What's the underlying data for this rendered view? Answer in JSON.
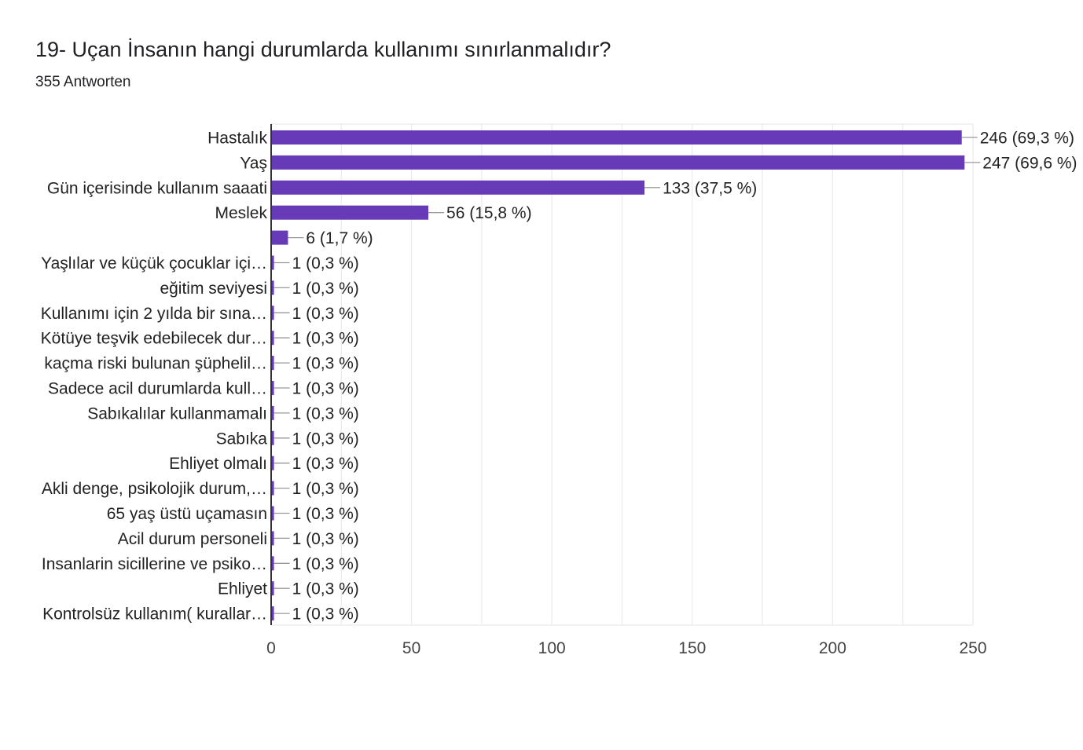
{
  "header": {
    "title": "19- Uçan İnsanın hangi durumlarda kullanımı sınırlanmalıdır?",
    "response_count": "355 Antworten"
  },
  "colors": {
    "bar": "#673ab7",
    "grid": "#ebebeb",
    "axis": "#333333",
    "leader": "#999999"
  },
  "chart_data": {
    "type": "bar",
    "orientation": "horizontal",
    "title": "19- Uçan İnsanın hangi durumlarda kullanımı sınırlanmalıdır?",
    "xlabel": "",
    "ylabel": "",
    "xlim": [
      0,
      250
    ],
    "x_ticks": [
      0,
      50,
      100,
      150,
      200,
      250
    ],
    "grid": true,
    "legend": "none",
    "categories": [
      "Hastalık",
      "Yaş",
      "Gün içerisinde kullanım saaati",
      "Meslek",
      "",
      "Yaşlılar ve küçük çocuklar içi…",
      "eğitim seviyesi",
      "Kullanımı için 2 yılda bir sına…",
      "Kötüye teşvik edebilecek dur…",
      "kaçma riski bulunan şüphelil…",
      "Sadece acil durumlarda kull…",
      "Sabıkalılar kullanmamalı",
      "Sabıka",
      "Ehliyet olmalı",
      "Akli denge, psikolojik durum,…",
      "65 yaş üstü uçamasın",
      "Acil durum personeli",
      "Insanlarin sicillerine ve psiko…",
      "Ehliyet",
      "Kontrolsüz kullanım( kurallar…"
    ],
    "values": [
      246,
      247,
      133,
      56,
      6,
      1,
      1,
      1,
      1,
      1,
      1,
      1,
      1,
      1,
      1,
      1,
      1,
      1,
      1,
      1
    ],
    "data_labels": [
      "246 (69,3 %)",
      "247 (69,6 %)",
      "133 (37,5 %)",
      "56 (15,8 %)",
      "6 (1,7 %)",
      "1 (0,3 %)",
      "1 (0,3 %)",
      "1 (0,3 %)",
      "1 (0,3 %)",
      "1 (0,3 %)",
      "1 (0,3 %)",
      "1 (0,3 %)",
      "1 (0,3 %)",
      "1 (0,3 %)",
      "1 (0,3 %)",
      "1 (0,3 %)",
      "1 (0,3 %)",
      "1 (0,3 %)",
      "1 (0,3 %)",
      "1 (0,3 %)"
    ]
  }
}
